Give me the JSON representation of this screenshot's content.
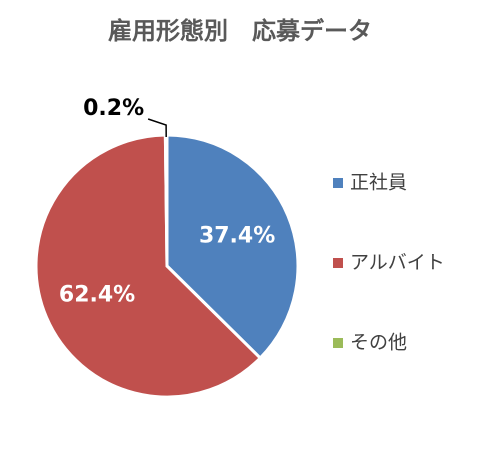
{
  "chart_data": {
    "type": "pie",
    "title": "雇用形態別　応募データ",
    "categories": [
      "正社員",
      "アルバイト",
      "その他"
    ],
    "values": [
      37.4,
      62.4,
      0.2
    ],
    "value_labels": [
      "37.4%",
      "62.4%",
      "0.2%"
    ],
    "colors": [
      "#4f81bd",
      "#c0504d",
      "#9bbb59"
    ],
    "legend": "right"
  }
}
